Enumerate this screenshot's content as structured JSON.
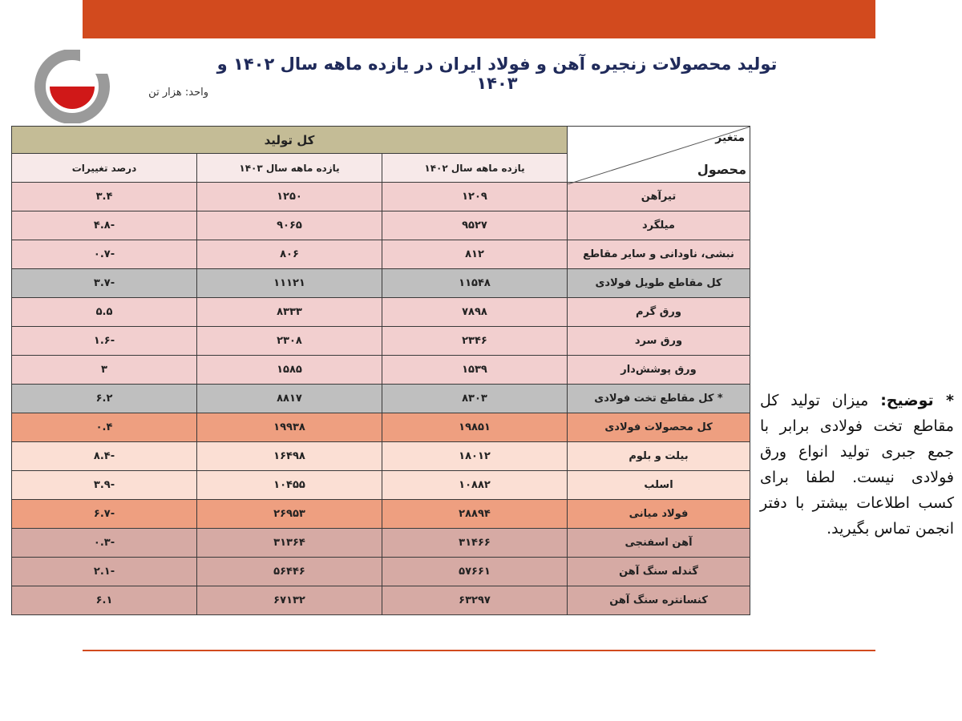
{
  "header": {
    "title": "تولید محصولات زنجیره آهن و فولاد ایران در یازده ماهه سال ۱۴۰۲ و ۱۴۰۳",
    "unit": "واحد: هزار تن"
  },
  "table": {
    "group_header": "کل تولید",
    "corner_top": "متغیر",
    "corner_bottom": "محصول",
    "columns": [
      "یازده ماهه سال ۱۴۰۲",
      "یازده ماهه سال ۱۴۰۳",
      "درصد تغییرات"
    ],
    "rows": [
      [
        "تیرآهن",
        "۱۲۰۹",
        "۱۲۵۰",
        "۳.۴"
      ],
      [
        "میلگرد",
        "۹۵۲۷",
        "۹۰۶۵",
        "-۴.۸"
      ],
      [
        "نبشی، ناودانی و سایر مقاطع",
        "۸۱۲",
        "۸۰۶",
        "-۰.۷"
      ],
      [
        "کل مقاطع طویل فولادی",
        "۱۱۵۴۸",
        "۱۱۱۲۱",
        "-۳.۷"
      ],
      [
        "ورق گرم",
        "۷۸۹۸",
        "۸۳۳۳",
        "۵.۵"
      ],
      [
        "ورق سرد",
        "۲۳۴۶",
        "۲۳۰۸",
        "-۱.۶"
      ],
      [
        "ورق پوشش‌دار",
        "۱۵۳۹",
        "۱۵۸۵",
        "۳"
      ],
      [
        "* کل مقاطع تخت فولادی",
        "۸۳۰۳",
        "۸۸۱۷",
        "۶.۲"
      ],
      [
        "کل محصولات فولادی",
        "۱۹۸۵۱",
        "۱۹۹۳۸",
        "۰.۴"
      ],
      [
        "بیلت و بلوم",
        "۱۸۰۱۲",
        "۱۶۴۹۸",
        "-۸.۴"
      ],
      [
        "اسلب",
        "۱۰۸۸۲",
        "۱۰۴۵۵",
        "-۳.۹"
      ],
      [
        "فولاد میانی",
        "۲۸۸۹۴",
        "۲۶۹۵۳",
        "-۶.۷"
      ],
      [
        "آهن اسفنجی",
        "۳۱۴۶۶",
        "۳۱۳۶۴",
        "-۰.۳"
      ],
      [
        "گندله سنگ آهن",
        "۵۷۶۶۱",
        "۵۶۴۴۶",
        "-۲.۱"
      ],
      [
        "کنسانتره سنگ آهن",
        "۶۳۲۹۷",
        "۶۷۱۳۲",
        "۶.۱"
      ]
    ]
  },
  "note": {
    "label": "* توضیح:",
    "text": "میزان تولید کل مقاطع تخت فولادی برابر با جمع جبری تولید انواع ورق فولادی نیست. لطفا برای کسب اطلاعات بیشتر با دفتر انجمن تماس بگیرید."
  }
}
